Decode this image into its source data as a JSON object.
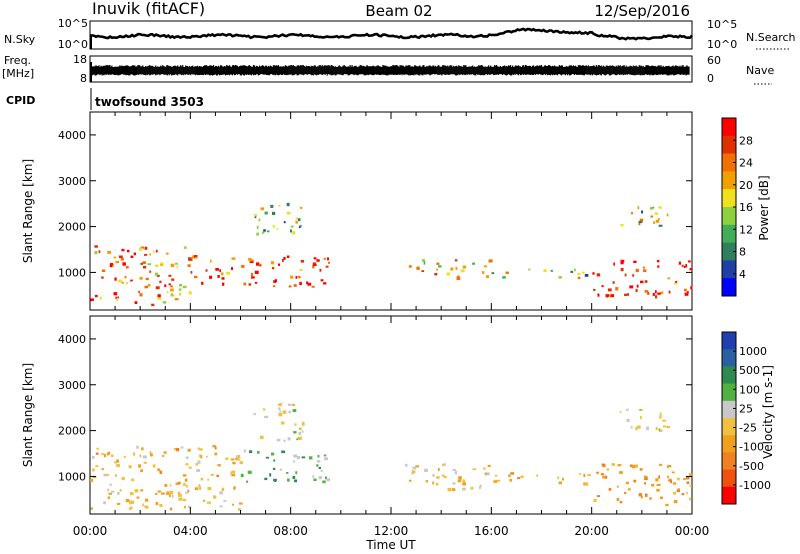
{
  "header": {
    "station": "Inuvik (fitACF)",
    "beam": "Beam 02",
    "date": "12/Sep/2016"
  },
  "strip_panels": {
    "nsky_label": "N.Sky",
    "nsearch_label": "N.Search",
    "log_ticks": [
      "10^5",
      "10^0"
    ],
    "freq_label": "Freq.",
    "freq_unit": "[MHz]",
    "freq_ticks": [
      "18",
      "8"
    ],
    "nave_label": "Nave",
    "nave_ticks": [
      "60",
      "0"
    ],
    "cpid_label": "CPID",
    "cpid_value": "twofsound 3503"
  },
  "colors": {
    "power_scale": [
      "#0000ff",
      "#1f3fa8",
      "#2f7f5e",
      "#3fae56",
      "#8fd03f",
      "#f0e020",
      "#f0a000",
      "#f07000",
      "#e03000",
      "#ff0000"
    ],
    "velocity_scale": [
      "#1f3fb0",
      "#2a5fa0",
      "#2f8a50",
      "#50b040",
      "#c8c8c8",
      "#f0c040",
      "#f0a020",
      "#f08020",
      "#f05010",
      "#ff0000"
    ]
  },
  "chart_data": [
    {
      "type": "heatmap",
      "name": "power",
      "xlabel": "Time UT",
      "ylabel": "Slant Range [km]",
      "x_ticks": [
        "00:00",
        "04:00",
        "08:00",
        "12:00",
        "16:00",
        "20:00",
        "00:00"
      ],
      "y_ticks": [
        1000,
        2000,
        3000,
        4000
      ],
      "x_range_hours": [
        0,
        24
      ],
      "y_range_km": [
        180,
        4500
      ],
      "colorbar": {
        "title": "Power [dB]",
        "tick_labels": [
          "28",
          "24",
          "20",
          "16",
          "12",
          "8",
          "4"
        ],
        "range": [
          0,
          30
        ]
      },
      "echo_regions": [
        {
          "t0": 0.0,
          "t1": 4.0,
          "r0": 300,
          "r1": 1600,
          "level": 22
        },
        {
          "t0": 4.0,
          "t1": 9.5,
          "r0": 700,
          "r1": 1400,
          "level": 26
        },
        {
          "t0": 6.5,
          "t1": 8.5,
          "r0": 1800,
          "r1": 2600,
          "level": 12
        },
        {
          "t0": 12.5,
          "t1": 16.0,
          "r0": 900,
          "r1": 1300,
          "level": 20
        },
        {
          "t0": 16.0,
          "t1": 20.0,
          "r0": 900,
          "r1": 1100,
          "level": 14
        },
        {
          "t0": 20.0,
          "t1": 24.0,
          "r0": 500,
          "r1": 1300,
          "level": 26
        },
        {
          "t0": 21.0,
          "t1": 23.0,
          "r0": 2000,
          "r1": 2500,
          "level": 14
        }
      ]
    },
    {
      "type": "heatmap",
      "name": "velocity",
      "xlabel": "Time UT",
      "ylabel": "Slant Range [km]",
      "x_ticks": [
        "00:00",
        "04:00",
        "08:00",
        "12:00",
        "16:00",
        "20:00",
        "00:00"
      ],
      "y_ticks": [
        1000,
        2000,
        3000,
        4000
      ],
      "x_range_hours": [
        0,
        24
      ],
      "y_range_km": [
        180,
        4500
      ],
      "colorbar": {
        "title": "Velocity [m s-1]",
        "tick_labels": [
          "1000",
          "500",
          "100",
          "25",
          "-25",
          "-100",
          "-500",
          "-1000"
        ],
        "range": [
          -1200,
          1200
        ]
      },
      "echo_regions": [
        {
          "t0": 0.0,
          "t1": 6.0,
          "r0": 300,
          "r1": 1700,
          "level": -200
        },
        {
          "t0": 6.0,
          "t1": 9.5,
          "r0": 900,
          "r1": 1600,
          "level": 300
        },
        {
          "t0": 6.5,
          "t1": 8.5,
          "r0": 1800,
          "r1": 2600,
          "level": 0
        },
        {
          "t0": 12.5,
          "t1": 16.0,
          "r0": 700,
          "r1": 1300,
          "level": -150
        },
        {
          "t0": 16.0,
          "t1": 20.0,
          "r0": 850,
          "r1": 1100,
          "level": -300
        },
        {
          "t0": 20.0,
          "t1": 24.0,
          "r0": 400,
          "r1": 1300,
          "level": -400
        },
        {
          "t0": 21.0,
          "t1": 23.0,
          "r0": 2000,
          "r1": 2500,
          "level": 0
        }
      ]
    }
  ]
}
